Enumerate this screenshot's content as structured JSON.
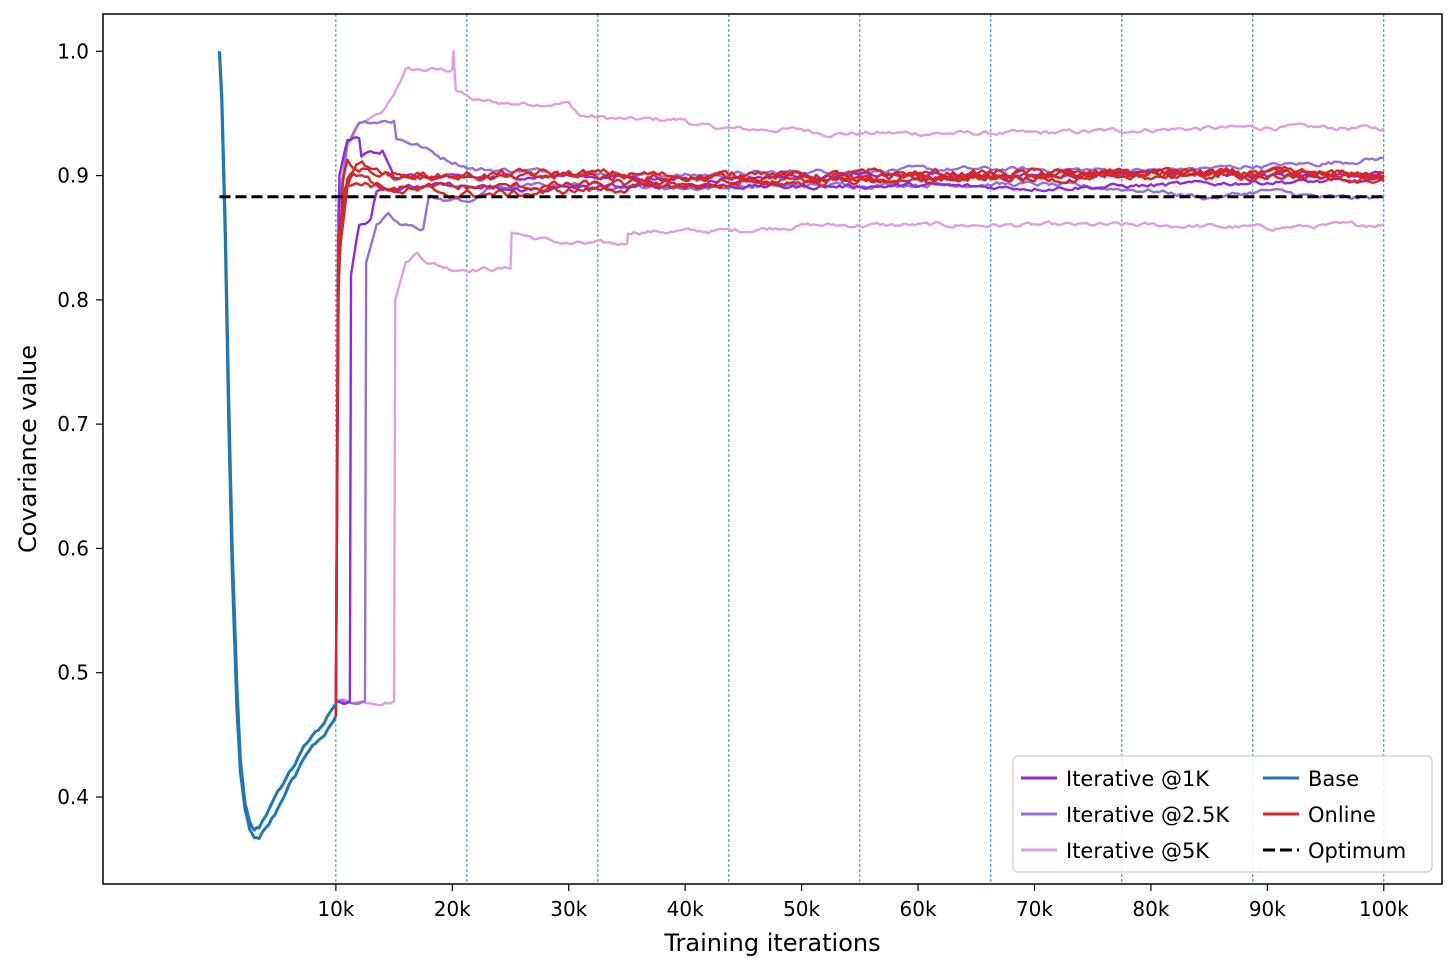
{
  "chart_data": {
    "type": "line",
    "title": "",
    "xlabel": "Training iterations",
    "ylabel": "Covariance value",
    "xlim": [
      -10000,
      105000
    ],
    "ylim": [
      0.33,
      1.03
    ],
    "x_ticks": [
      {
        "value": 10000,
        "label": "10k"
      },
      {
        "value": 20000,
        "label": "20k"
      },
      {
        "value": 30000,
        "label": "30k"
      },
      {
        "value": 40000,
        "label": "40k"
      },
      {
        "value": 50000,
        "label": "50k"
      },
      {
        "value": 60000,
        "label": "60k"
      },
      {
        "value": 70000,
        "label": "70k"
      },
      {
        "value": 80000,
        "label": "80k"
      },
      {
        "value": 90000,
        "label": "90k"
      },
      {
        "value": 100000,
        "label": "100k"
      }
    ],
    "y_ticks": [
      {
        "value": 0.4,
        "label": "0.4"
      },
      {
        "value": 0.5,
        "label": "0.5"
      },
      {
        "value": 0.6,
        "label": "0.6"
      },
      {
        "value": 0.7,
        "label": "0.7"
      },
      {
        "value": 0.8,
        "label": "0.8"
      },
      {
        "value": 0.9,
        "label": "0.9"
      },
      {
        "value": 1.0,
        "label": "1.0"
      }
    ],
    "vertical_dashed_lines": [
      10000,
      21250,
      32500,
      43750,
      55000,
      66250,
      77500,
      88750,
      100000
    ],
    "legend_position": "lower-right",
    "legend_columns": 2,
    "legend": [
      {
        "name": "Iterative @1K",
        "color": "#8a2be2",
        "style": "solid"
      },
      {
        "name": "Iterative @2.5K",
        "color": "#9370db",
        "style": "solid"
      },
      {
        "name": "Iterative @5K",
        "color": "#dda0dd",
        "style": "solid"
      },
      {
        "name": "Base",
        "color": "#1f77b4",
        "style": "solid"
      },
      {
        "name": "Online",
        "color": "#d62728",
        "style": "solid"
      },
      {
        "name": "Optimum",
        "color": "#000000",
        "style": "dashed"
      }
    ],
    "series": [
      {
        "group": "Iterative @5K",
        "color": "#dda0dd",
        "noise": 0.0015,
        "points": [
          [
            10000,
            0.48
          ],
          [
            10200,
            0.88
          ],
          [
            11000,
            0.925
          ],
          [
            12000,
            0.94
          ],
          [
            14000,
            0.95
          ],
          [
            15500,
            0.975
          ],
          [
            16000,
            0.985
          ],
          [
            19000,
            0.985
          ],
          [
            20000,
            0.985
          ],
          [
            20100,
            1.0
          ],
          [
            20300,
            0.97
          ],
          [
            21000,
            0.965
          ],
          [
            22000,
            0.96
          ],
          [
            25000,
            0.958
          ],
          [
            30000,
            0.958
          ],
          [
            31000,
            0.948
          ],
          [
            35000,
            0.945
          ],
          [
            40000,
            0.945
          ],
          [
            41000,
            0.94
          ],
          [
            45000,
            0.937
          ],
          [
            50000,
            0.937
          ],
          [
            52000,
            0.934
          ],
          [
            60000,
            0.934
          ],
          [
            65000,
            0.934
          ],
          [
            70000,
            0.934
          ],
          [
            80000,
            0.937
          ],
          [
            90000,
            0.939
          ],
          [
            100000,
            0.938
          ]
        ]
      },
      {
        "group": "Iterative @5K",
        "color": "#dda0dd",
        "noise": 0.0015,
        "points": [
          [
            10000,
            0.477
          ],
          [
            15000,
            0.477
          ],
          [
            15100,
            0.8
          ],
          [
            16000,
            0.83
          ],
          [
            17000,
            0.838
          ],
          [
            18000,
            0.83
          ],
          [
            20000,
            0.825
          ],
          [
            25000,
            0.825
          ],
          [
            25100,
            0.855
          ],
          [
            27000,
            0.85
          ],
          [
            30000,
            0.845
          ],
          [
            35000,
            0.845
          ],
          [
            35100,
            0.855
          ],
          [
            40000,
            0.855
          ],
          [
            45000,
            0.856
          ],
          [
            50000,
            0.86
          ],
          [
            60000,
            0.86
          ],
          [
            70000,
            0.86
          ],
          [
            80000,
            0.86
          ],
          [
            90000,
            0.858
          ],
          [
            100000,
            0.861
          ]
        ]
      },
      {
        "group": "Iterative @2.5K",
        "color": "#9370db",
        "noise": 0.0015,
        "points": [
          [
            10000,
            0.48
          ],
          [
            10200,
            0.87
          ],
          [
            11000,
            0.925
          ],
          [
            12000,
            0.944
          ],
          [
            15000,
            0.944
          ],
          [
            15200,
            0.93
          ],
          [
            17000,
            0.925
          ],
          [
            19000,
            0.915
          ],
          [
            22000,
            0.905
          ],
          [
            30000,
            0.903
          ],
          [
            40000,
            0.9
          ],
          [
            50000,
            0.903
          ],
          [
            60000,
            0.905
          ],
          [
            70000,
            0.905
          ],
          [
            80000,
            0.904
          ],
          [
            90000,
            0.908
          ],
          [
            95000,
            0.91
          ],
          [
            100000,
            0.914
          ]
        ]
      },
      {
        "group": "Iterative @2.5K",
        "color": "#9370db",
        "noise": 0.0015,
        "points": [
          [
            10000,
            0.477
          ],
          [
            12500,
            0.477
          ],
          [
            12600,
            0.83
          ],
          [
            13500,
            0.86
          ],
          [
            14500,
            0.867
          ],
          [
            15500,
            0.86
          ],
          [
            17500,
            0.857
          ],
          [
            18000,
            0.885
          ],
          [
            19000,
            0.88
          ],
          [
            22000,
            0.88
          ],
          [
            23000,
            0.89
          ],
          [
            30000,
            0.893
          ],
          [
            40000,
            0.89
          ],
          [
            50000,
            0.892
          ],
          [
            60000,
            0.893
          ],
          [
            70000,
            0.893
          ],
          [
            80000,
            0.888
          ],
          [
            85000,
            0.882
          ],
          [
            90000,
            0.888
          ],
          [
            95000,
            0.882
          ],
          [
            100000,
            0.882
          ]
        ]
      },
      {
        "group": "Iterative @1K",
        "color": "#8a2be2",
        "noise": 0.0015,
        "points": [
          [
            10000,
            0.48
          ],
          [
            10300,
            0.9
          ],
          [
            11000,
            0.93
          ],
          [
            12000,
            0.93
          ],
          [
            12200,
            0.915
          ],
          [
            13000,
            0.92
          ],
          [
            14000,
            0.92
          ],
          [
            15000,
            0.9
          ],
          [
            20000,
            0.898
          ],
          [
            30000,
            0.9
          ],
          [
            40000,
            0.897
          ],
          [
            50000,
            0.9
          ],
          [
            60000,
            0.9
          ],
          [
            70000,
            0.9
          ],
          [
            80000,
            0.902
          ],
          [
            90000,
            0.9
          ],
          [
            100000,
            0.902
          ]
        ]
      },
      {
        "group": "Iterative @1K",
        "color": "#8a2be2",
        "noise": 0.0015,
        "points": [
          [
            10000,
            0.477
          ],
          [
            11200,
            0.477
          ],
          [
            11300,
            0.82
          ],
          [
            12000,
            0.862
          ],
          [
            13000,
            0.865
          ],
          [
            13500,
            0.89
          ],
          [
            15000,
            0.89
          ],
          [
            20000,
            0.892
          ],
          [
            25000,
            0.888
          ],
          [
            30000,
            0.89
          ],
          [
            40000,
            0.892
          ],
          [
            50000,
            0.891
          ],
          [
            60000,
            0.892
          ],
          [
            70000,
            0.89
          ],
          [
            80000,
            0.892
          ],
          [
            90000,
            0.895
          ],
          [
            100000,
            0.895
          ]
        ]
      },
      {
        "group": "Online",
        "color": "#d62728",
        "noise": 0.0025,
        "points": [
          [
            10000,
            0.47
          ],
          [
            10200,
            0.8
          ],
          [
            10600,
            0.895
          ],
          [
            11000,
            0.915
          ],
          [
            12000,
            0.905
          ],
          [
            15000,
            0.9
          ],
          [
            20000,
            0.9
          ],
          [
            30000,
            0.902
          ],
          [
            40000,
            0.9
          ],
          [
            50000,
            0.9
          ],
          [
            60000,
            0.902
          ],
          [
            70000,
            0.902
          ],
          [
            80000,
            0.9
          ],
          [
            90000,
            0.902
          ],
          [
            100000,
            0.9
          ]
        ]
      },
      {
        "group": "Online",
        "color": "#d62728",
        "noise": 0.0025,
        "points": [
          [
            10000,
            0.465
          ],
          [
            10200,
            0.82
          ],
          [
            10800,
            0.89
          ],
          [
            11500,
            0.9
          ],
          [
            13000,
            0.895
          ],
          [
            15000,
            0.89
          ],
          [
            20000,
            0.89
          ],
          [
            30000,
            0.892
          ],
          [
            40000,
            0.893
          ],
          [
            50000,
            0.895
          ],
          [
            60000,
            0.897
          ],
          [
            70000,
            0.9
          ],
          [
            80000,
            0.9
          ],
          [
            90000,
            0.902
          ],
          [
            100000,
            0.902
          ]
        ]
      },
      {
        "group": "Online",
        "color": "#d62728",
        "noise": 0.0025,
        "points": [
          [
            10000,
            0.465
          ],
          [
            10200,
            0.85
          ],
          [
            11000,
            0.9
          ],
          [
            12000,
            0.91
          ],
          [
            14000,
            0.905
          ],
          [
            16000,
            0.9
          ],
          [
            20000,
            0.9
          ],
          [
            25000,
            0.897
          ],
          [
            30000,
            0.9
          ],
          [
            40000,
            0.898
          ],
          [
            50000,
            0.9
          ],
          [
            60000,
            0.898
          ],
          [
            70000,
            0.9
          ],
          [
            80000,
            0.903
          ],
          [
            90000,
            0.9
          ],
          [
            100000,
            0.898
          ]
        ]
      },
      {
        "group": "Online",
        "color": "#d62728",
        "noise": 0.0025,
        "points": [
          [
            10000,
            0.465
          ],
          [
            10200,
            0.83
          ],
          [
            11000,
            0.89
          ],
          [
            12000,
            0.895
          ],
          [
            15000,
            0.89
          ],
          [
            20000,
            0.885
          ],
          [
            25000,
            0.885
          ],
          [
            30000,
            0.888
          ],
          [
            40000,
            0.892
          ],
          [
            50000,
            0.895
          ],
          [
            60000,
            0.898
          ],
          [
            70000,
            0.898
          ],
          [
            80000,
            0.9
          ],
          [
            90000,
            0.9
          ],
          [
            100000,
            0.9
          ]
        ]
      },
      {
        "group": "Base",
        "color": "#1f77b4",
        "noise": 0.0015,
        "points": [
          [
            0,
            1.0
          ],
          [
            200,
            0.96
          ],
          [
            500,
            0.85
          ],
          [
            800,
            0.7
          ],
          [
            1100,
            0.58
          ],
          [
            1500,
            0.47
          ],
          [
            1800,
            0.42
          ],
          [
            2200,
            0.39
          ],
          [
            2600,
            0.375
          ],
          [
            3000,
            0.368
          ],
          [
            3400,
            0.366
          ],
          [
            4000,
            0.375
          ],
          [
            5000,
            0.39
          ],
          [
            6000,
            0.41
          ],
          [
            7000,
            0.425
          ],
          [
            8000,
            0.44
          ],
          [
            9000,
            0.45
          ],
          [
            10000,
            0.465
          ]
        ]
      },
      {
        "group": "Base",
        "color": "#1f77b4",
        "noise": 0.0015,
        "points": [
          [
            0,
            1.0
          ],
          [
            200,
            0.965
          ],
          [
            500,
            0.86
          ],
          [
            800,
            0.72
          ],
          [
            1100,
            0.6
          ],
          [
            1500,
            0.49
          ],
          [
            1800,
            0.43
          ],
          [
            2200,
            0.395
          ],
          [
            2600,
            0.38
          ],
          [
            3000,
            0.372
          ],
          [
            3400,
            0.375
          ],
          [
            4000,
            0.385
          ],
          [
            5000,
            0.405
          ],
          [
            6000,
            0.42
          ],
          [
            7000,
            0.435
          ],
          [
            8000,
            0.45
          ],
          [
            9000,
            0.46
          ],
          [
            10000,
            0.475
          ]
        ]
      },
      {
        "group": "Optimum",
        "color": "#000000",
        "dashed": true,
        "points": [
          [
            0,
            0.883
          ],
          [
            100000,
            0.883
          ]
        ]
      }
    ]
  }
}
